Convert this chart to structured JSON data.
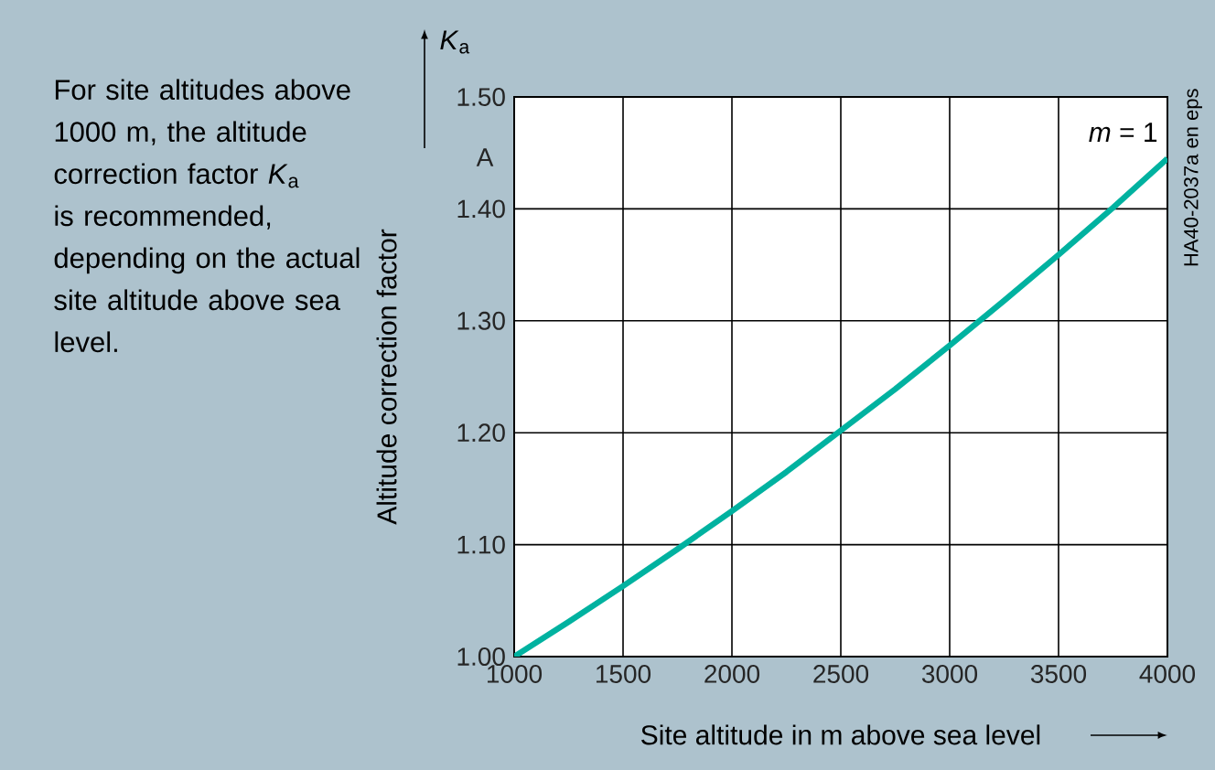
{
  "chart_data": {
    "type": "line",
    "ylabel": "Altitude correction factor",
    "xlabel": "Site altitude in m above sea level",
    "x": [
      1000,
      1250,
      1500,
      1750,
      2000,
      2250,
      2500,
      2750,
      3000,
      3250,
      3500,
      3750,
      4000
    ],
    "series": [
      {
        "name": "*m* = 1",
        "color": "#00b2a0",
        "values": [
          1.0,
          1.031,
          1.063,
          1.096,
          1.13,
          1.165,
          1.202,
          1.239,
          1.278,
          1.318,
          1.359,
          1.401,
          1.445
        ]
      }
    ],
    "xlim": [
      1000,
      4000
    ],
    "xticks": [
      1000,
      1500,
      2000,
      2500,
      3000,
      3500,
      4000
    ],
    "ylim": [
      1.0,
      1.5
    ],
    "yticks": [
      {
        "value": 1.0,
        "label": "1.00"
      },
      {
        "value": 1.1,
        "label": "1.10"
      },
      {
        "value": 1.2,
        "label": "1.20"
      },
      {
        "value": 1.3,
        "label": "1.30"
      },
      {
        "value": 1.4,
        "label": "1.40"
      },
      {
        "value": 1.5,
        "label": "1.50"
      }
    ],
    "grid": true,
    "legend": false,
    "marker": "none",
    "line_style": "solid",
    "annotations": [
      "For site altitudes above 1000 m, the altitude correction factor *K*$_{a}$ is recommended, depending on the actual site altitude above sea level.",
      "*K*$_{a}$",
      "A",
      "HA40-2037a en eps"
    ]
  }
}
